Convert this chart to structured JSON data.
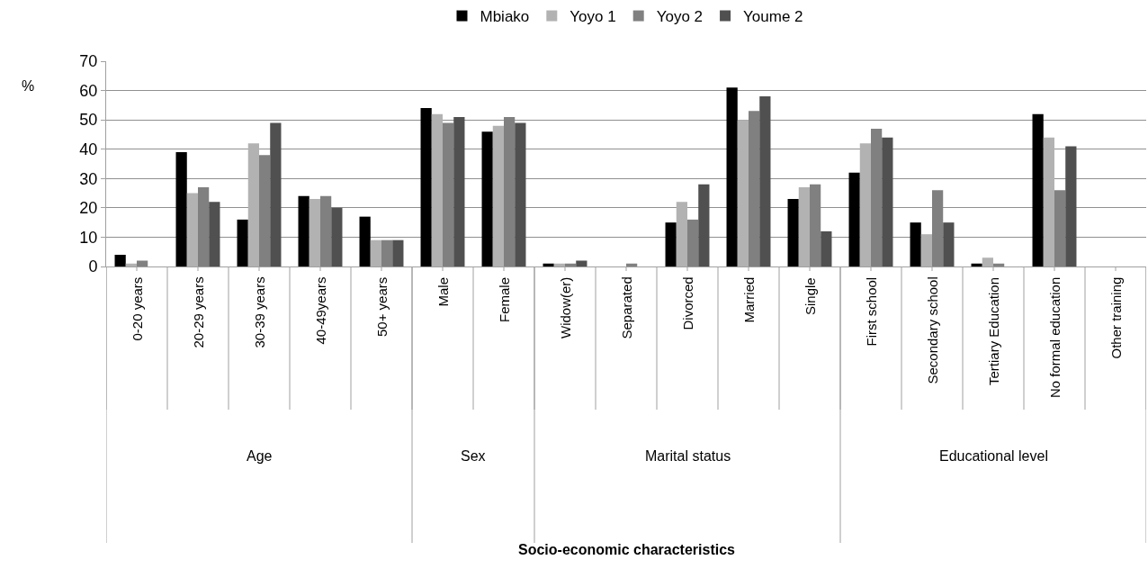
{
  "chart_data": {
    "type": "bar",
    "ylabel": "%",
    "categories": [
      "0-20 years",
      "20-29 years",
      "30-39 years",
      "40-49years",
      "50+ years",
      "Male",
      "Female",
      "Widow(er)",
      "Separated",
      "Divorced",
      "Married",
      "Single",
      "First school",
      "Secondary school",
      "Tertiary Education",
      "No formal education",
      "Other training"
    ],
    "series": [
      {
        "name": "Mbiako",
        "color": "#000000",
        "values": [
          4,
          39,
          16,
          24,
          17,
          54,
          46,
          1,
          0,
          15,
          61,
          23,
          32,
          15,
          1,
          52,
          0
        ]
      },
      {
        "name": "Yoyo 1",
        "color": "#b2b2b2",
        "values": [
          1,
          25,
          42,
          23,
          9,
          52,
          48,
          1,
          0,
          22,
          50,
          27,
          42,
          11,
          3,
          44,
          0
        ]
      },
      {
        "name": "Yoyo 2",
        "color": "#808080",
        "values": [
          2,
          27,
          38,
          24,
          9,
          49,
          51,
          1,
          1,
          16,
          53,
          28,
          47,
          26,
          1,
          26,
          0
        ]
      },
      {
        "name": "Youme 2",
        "color": "#505050",
        "values": [
          0,
          22,
          49,
          20,
          9,
          51,
          49,
          2,
          0,
          28,
          58,
          12,
          44,
          15,
          0,
          41,
          0
        ]
      }
    ],
    "annotations": [
      "Age",
      "Sex",
      "Marital status",
      "Educational level",
      "Socio-economic characteristics"
    ],
    "ylim": [
      0,
      70
    ],
    "yticks": [
      0,
      10,
      20,
      30,
      40,
      50,
      60,
      70
    ],
    "grid": "y",
    "legend": "top"
  }
}
